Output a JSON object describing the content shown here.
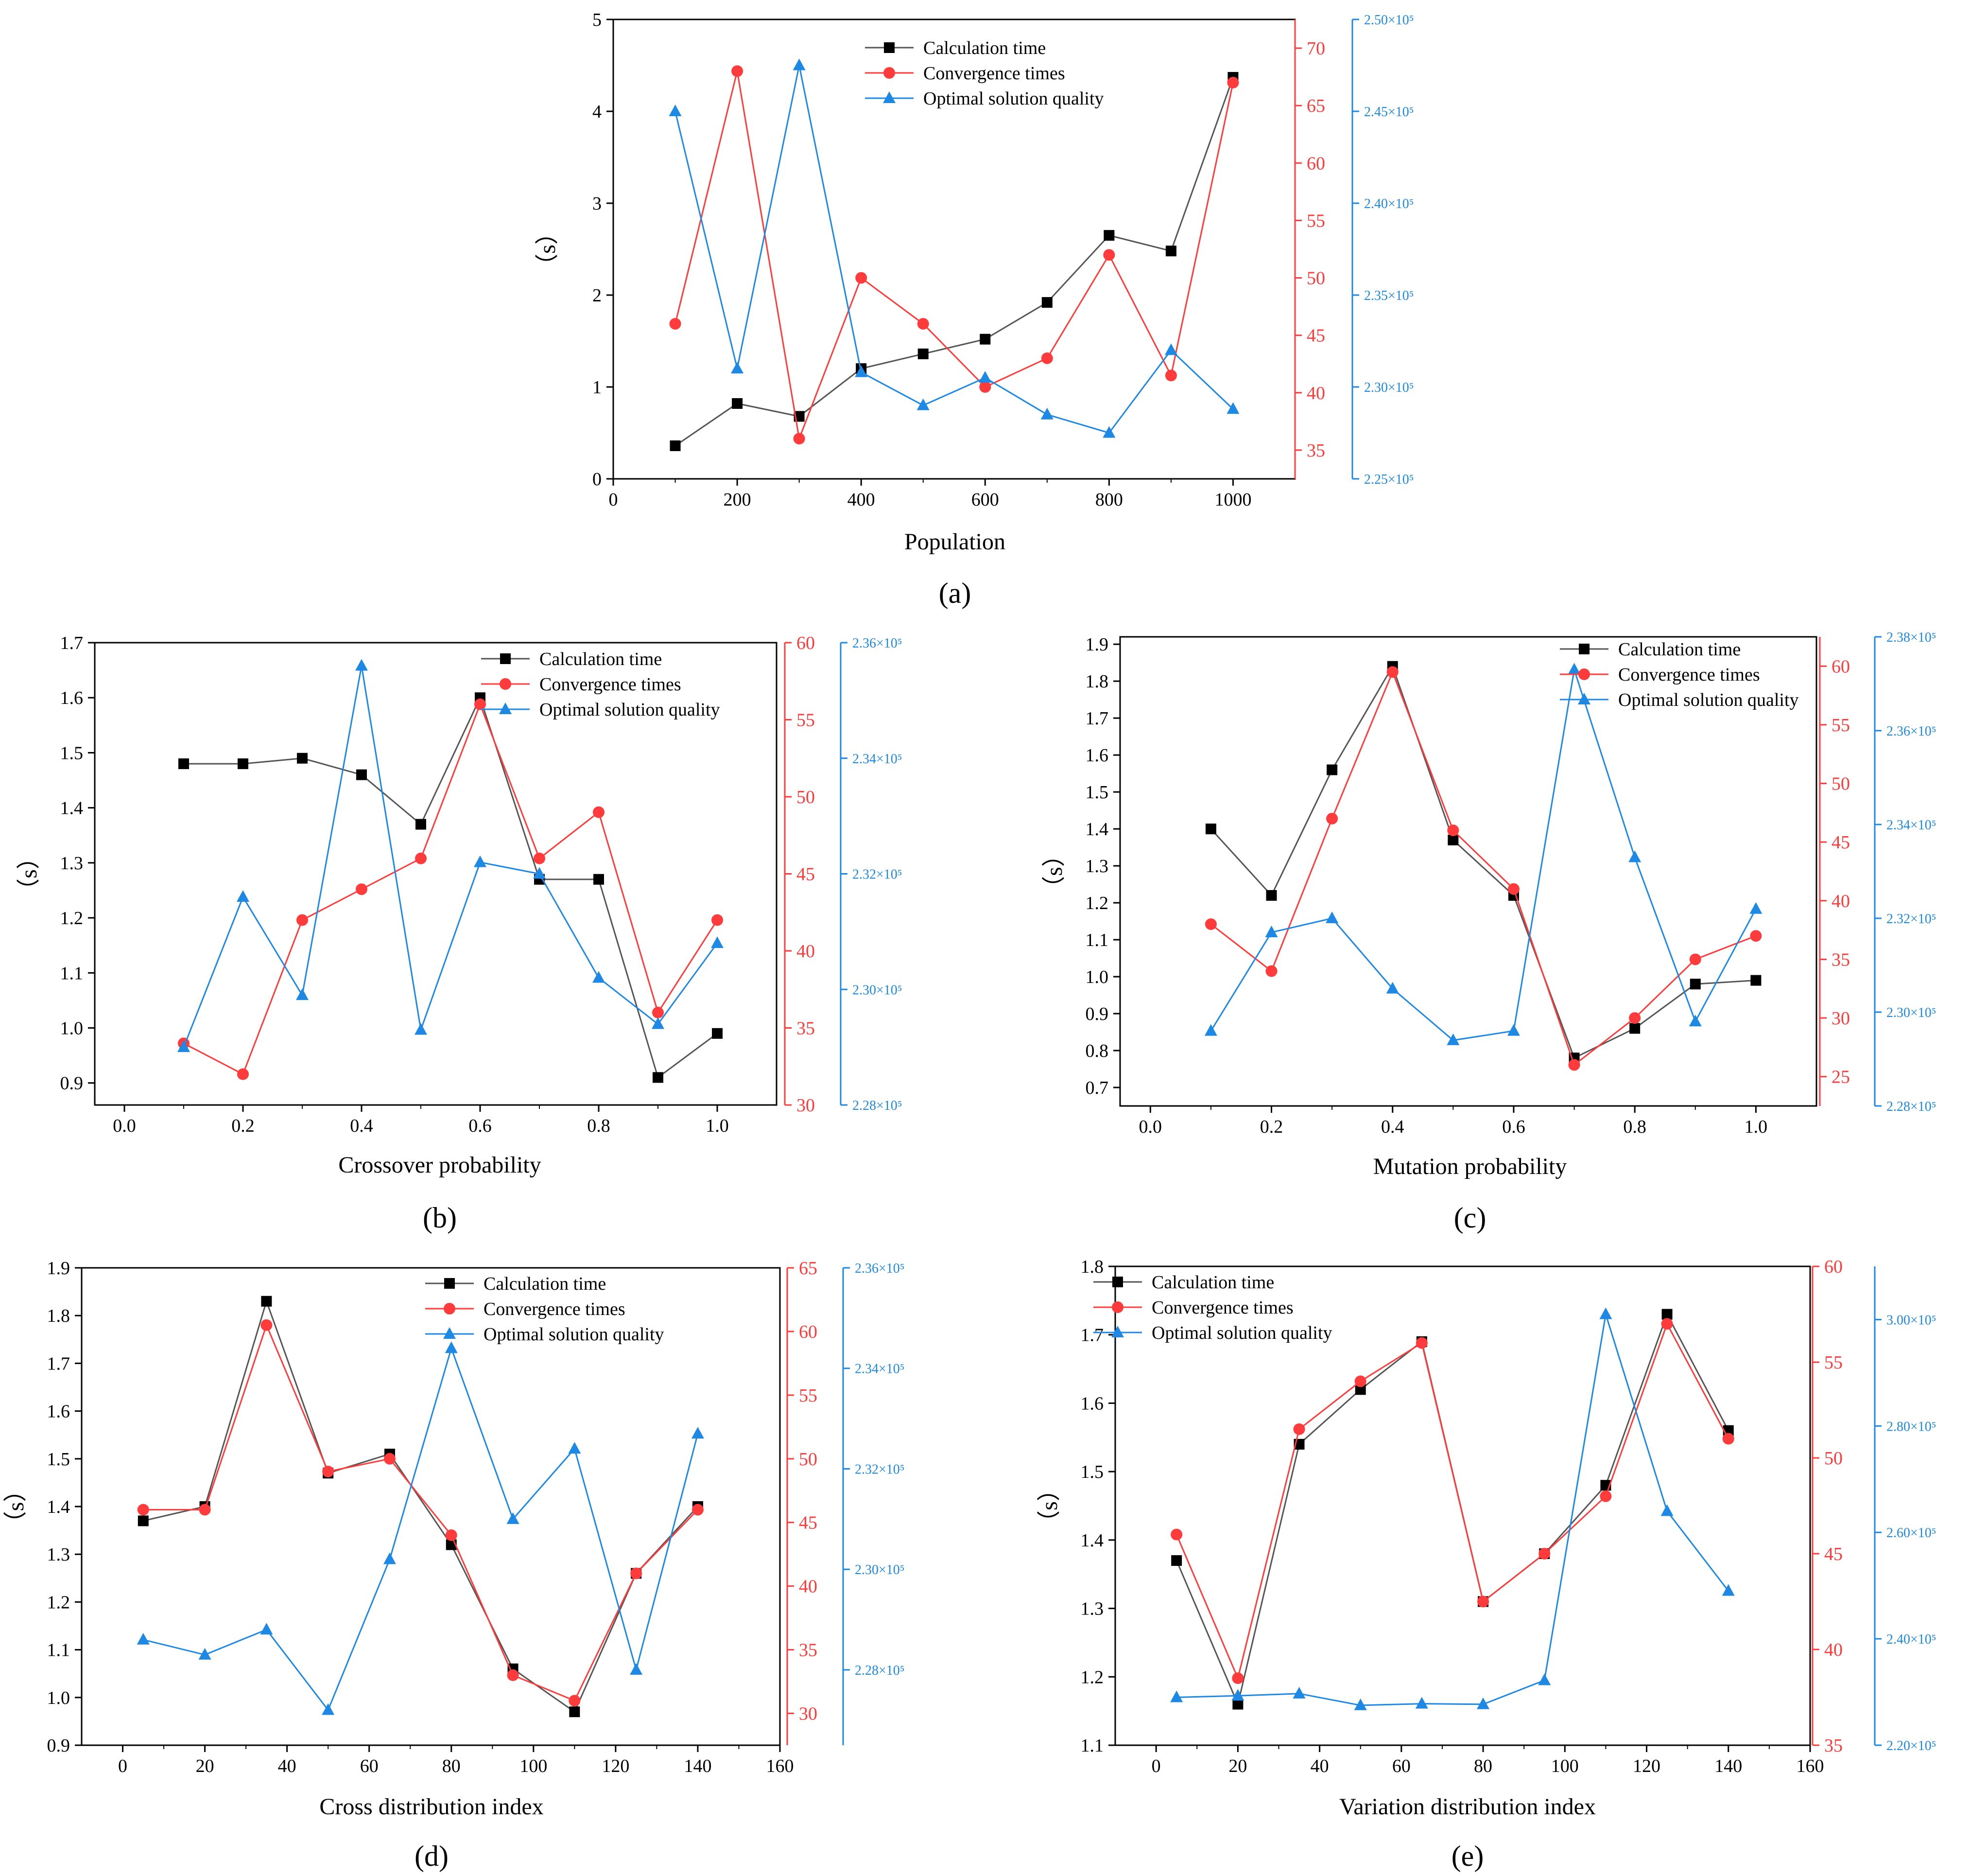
{
  "figure": {
    "colors": {
      "calc": "#000000",
      "calc_line": "#555555",
      "conv": "#ff3b3b",
      "opt": "#1e88e5"
    }
  },
  "chart_data": [
    {
      "id": "a",
      "type": "line",
      "panel_label": "(a)",
      "xlabel": "Population",
      "ylabel": "（s）",
      "xlim": [
        0,
        1100
      ],
      "xticks": [
        0,
        200,
        400,
        600,
        800,
        1000
      ],
      "xtick_labels": [
        "0",
        "200",
        "400",
        "600",
        "800",
        "1000"
      ],
      "y1": {
        "lim": [
          0,
          5
        ],
        "ticks": [
          0,
          1,
          2,
          3,
          4,
          5
        ],
        "labels": [
          "0",
          "1",
          "2",
          "3",
          "4",
          "5"
        ]
      },
      "y2": {
        "lim": [
          32.5,
          72.5
        ],
        "ticks": [
          35,
          40,
          45,
          50,
          55,
          60,
          65,
          70
        ],
        "labels": [
          "35",
          "40",
          "45",
          "50",
          "55",
          "60",
          "65",
          "70"
        ]
      },
      "y3": {
        "lim": [
          225000,
          250000
        ],
        "ticks": [
          225000,
          230000,
          235000,
          240000,
          245000,
          250000
        ],
        "labels": [
          "2.25×10⁵",
          "2.30×10⁵",
          "2.35×10⁵",
          "2.40×10⁵",
          "2.45×10⁵",
          "2.50×10⁵"
        ]
      },
      "x": [
        100,
        200,
        300,
        400,
        500,
        600,
        700,
        800,
        900,
        1000
      ],
      "legend": [
        "Calculation time",
        "Convergence times",
        "Optimal solution quality"
      ],
      "series": [
        {
          "name": "Calculation time",
          "axis": "y1",
          "values": [
            0.36,
            0.82,
            0.68,
            1.2,
            1.36,
            1.52,
            1.92,
            2.65,
            2.48,
            4.37
          ]
        },
        {
          "name": "Convergence times",
          "axis": "y2",
          "values": [
            46,
            68,
            36,
            50,
            46,
            40.5,
            43,
            52,
            41.5,
            67
          ]
        },
        {
          "name": "Optimal solution quality",
          "axis": "y3",
          "values": [
            245000,
            231000,
            247500,
            230800,
            229000,
            230500,
            228500,
            227500,
            232000,
            228800
          ]
        }
      ]
    },
    {
      "id": "b",
      "type": "line",
      "panel_label": "(b)",
      "xlabel": "Crossover probability",
      "ylabel": "（s）",
      "xlim": [
        -0.05,
        1.1
      ],
      "xticks": [
        0,
        0.2,
        0.4,
        0.6,
        0.8,
        1.0
      ],
      "xtick_labels": [
        "0.0",
        "0.2",
        "0.4",
        "0.6",
        "0.8",
        "1.0"
      ],
      "y1": {
        "lim": [
          0.86,
          1.7
        ],
        "ticks": [
          0.9,
          1.0,
          1.1,
          1.2,
          1.3,
          1.4,
          1.5,
          1.6,
          1.7
        ],
        "labels": [
          "0.9",
          "1.0",
          "1.1",
          "1.2",
          "1.3",
          "1.4",
          "1.5",
          "1.6",
          "1.7"
        ]
      },
      "y2": {
        "lim": [
          30,
          60
        ],
        "ticks": [
          30,
          35,
          40,
          45,
          50,
          55,
          60
        ],
        "labels": [
          "30",
          "35",
          "40",
          "45",
          "50",
          "55",
          "60"
        ]
      },
      "y3": {
        "lim": [
          228000,
          236000
        ],
        "ticks": [
          228000,
          230000,
          232000,
          234000,
          236000
        ],
        "labels": [
          "2.28×10⁵",
          "2.30×10⁵",
          "2.32×10⁵",
          "2.34×10⁵",
          "2.36×10⁵"
        ]
      },
      "x": [
        0.1,
        0.2,
        0.3,
        0.4,
        0.5,
        0.6,
        0.7,
        0.8,
        0.9,
        1.0
      ],
      "legend": [
        "Calculation time",
        "Convergence times",
        "Optimal solution quality"
      ],
      "series": [
        {
          "name": "Calculation time",
          "axis": "y1",
          "values": [
            1.48,
            1.48,
            1.49,
            1.46,
            1.37,
            1.6,
            1.27,
            1.27,
            0.91,
            0.99
          ]
        },
        {
          "name": "Convergence times",
          "axis": "y2",
          "values": [
            34,
            32,
            42,
            44,
            46,
            56,
            46,
            49,
            36,
            42
          ]
        },
        {
          "name": "Optimal solution quality",
          "axis": "y3",
          "values": [
            229000,
            231600,
            229900,
            235600,
            229300,
            232200,
            232000,
            230200,
            229400,
            230800
          ]
        }
      ]
    },
    {
      "id": "c",
      "type": "line",
      "panel_label": "(c)",
      "xlabel": "Mutation probability",
      "ylabel": "（s）",
      "xlim": [
        -0.05,
        1.1
      ],
      "xticks": [
        0,
        0.2,
        0.4,
        0.6,
        0.8,
        1.0
      ],
      "xtick_labels": [
        "0.0",
        "0.2",
        "0.4",
        "0.6",
        "0.8",
        "1.0"
      ],
      "y1": {
        "lim": [
          0.65,
          1.92
        ],
        "ticks": [
          0.7,
          0.8,
          0.9,
          1.0,
          1.1,
          1.2,
          1.3,
          1.4,
          1.5,
          1.6,
          1.7,
          1.8,
          1.9
        ],
        "labels": [
          "0.7",
          "0.8",
          "0.9",
          "1.0",
          "1.1",
          "1.2",
          "1.3",
          "1.4",
          "1.5",
          "1.6",
          "1.7",
          "1.8",
          "1.9"
        ]
      },
      "y2": {
        "lim": [
          22.5,
          62.5
        ],
        "ticks": [
          25,
          30,
          35,
          40,
          45,
          50,
          55,
          60
        ],
        "labels": [
          "25",
          "30",
          "35",
          "40",
          "45",
          "50",
          "55",
          "60"
        ]
      },
      "y3": {
        "lim": [
          228000,
          238000
        ],
        "ticks": [
          228000,
          230000,
          232000,
          234000,
          236000,
          238000
        ],
        "labels": [
          "2.28×10⁵",
          "2.30×10⁵",
          "2.32×10⁵",
          "2.34×10⁵",
          "2.36×10⁵",
          "2.38×10⁵"
        ]
      },
      "x": [
        0.1,
        0.2,
        0.3,
        0.4,
        0.5,
        0.6,
        0.7,
        0.8,
        0.9,
        1.0
      ],
      "legend": [
        "Calculation time",
        "Convergence times",
        "Optimal solution quality"
      ],
      "series": [
        {
          "name": "Calculation time",
          "axis": "y1",
          "values": [
            1.4,
            1.22,
            1.56,
            1.84,
            1.37,
            1.22,
            0.78,
            0.86,
            0.98,
            0.99
          ]
        },
        {
          "name": "Convergence times",
          "axis": "y2",
          "values": [
            38,
            34,
            47,
            59.5,
            46,
            41,
            26,
            30,
            35,
            37
          ]
        },
        {
          "name": "Optimal solution quality",
          "axis": "y3",
          "values": [
            229600,
            231700,
            232000,
            230500,
            229400,
            229600,
            237300,
            233300,
            229800,
            232200
          ]
        }
      ]
    },
    {
      "id": "d",
      "type": "line",
      "panel_label": "(d)",
      "xlabel": "Cross distribution index",
      "ylabel": "（s）",
      "xlim": [
        -10,
        160
      ],
      "xticks": [
        0,
        20,
        40,
        60,
        80,
        100,
        120,
        140,
        160
      ],
      "xtick_labels": [
        "0",
        "20",
        "40",
        "60",
        "80",
        "100",
        "120",
        "140",
        "160"
      ],
      "y1": {
        "lim": [
          0.9,
          1.9
        ],
        "ticks": [
          0.9,
          1.0,
          1.1,
          1.2,
          1.3,
          1.4,
          1.5,
          1.6,
          1.7,
          1.8,
          1.9
        ],
        "labels": [
          "0.9",
          "1.0",
          "1.1",
          "1.2",
          "1.3",
          "1.4",
          "1.5",
          "1.6",
          "1.7",
          "1.8",
          "1.9"
        ]
      },
      "y2": {
        "lim": [
          27.5,
          65
        ],
        "ticks": [
          30,
          35,
          40,
          45,
          50,
          55,
          60,
          65
        ],
        "labels": [
          "30",
          "35",
          "40",
          "45",
          "50",
          "55",
          "60",
          "65"
        ]
      },
      "y3": {
        "lim": [
          226500,
          236000
        ],
        "ticks": [
          228000,
          230000,
          232000,
          234000,
          236000
        ],
        "labels": [
          "2.28×10⁵",
          "2.30×10⁵",
          "2.32×10⁵",
          "2.34×10⁵",
          "2.36×10⁵"
        ]
      },
      "x": [
        5,
        20,
        35,
        50,
        65,
        80,
        95,
        110,
        125,
        140
      ],
      "legend": [
        "Calculation time",
        "Convergence times",
        "Optimal solution quality"
      ],
      "series": [
        {
          "name": "Calculation time",
          "axis": "y1",
          "values": [
            1.37,
            1.4,
            1.83,
            1.47,
            1.51,
            1.32,
            1.06,
            0.97,
            1.26,
            1.4
          ]
        },
        {
          "name": "Convergence times",
          "axis": "y2",
          "values": [
            46,
            46,
            60.5,
            49,
            50,
            44,
            33,
            31,
            41,
            46
          ]
        },
        {
          "name": "Optimal solution quality",
          "axis": "y3",
          "values": [
            228600,
            228300,
            228800,
            227200,
            230200,
            234400,
            231000,
            232400,
            228000,
            232700
          ]
        }
      ]
    },
    {
      "id": "e",
      "type": "line",
      "panel_label": "(e)",
      "xlabel": "Variation distribution index",
      "ylabel": "（s）",
      "xlim": [
        -10,
        160
      ],
      "xticks": [
        0,
        20,
        40,
        60,
        80,
        100,
        120,
        140,
        160
      ],
      "xtick_labels": [
        "0",
        "20",
        "40",
        "60",
        "80",
        "100",
        "120",
        "140",
        "160"
      ],
      "y1": {
        "lim": [
          1.1,
          1.8
        ],
        "ticks": [
          1.1,
          1.2,
          1.3,
          1.4,
          1.5,
          1.6,
          1.7,
          1.8
        ],
        "labels": [
          "1.1",
          "1.2",
          "1.3",
          "1.4",
          "1.5",
          "1.6",
          "1.7",
          "1.8"
        ]
      },
      "y2": {
        "lim": [
          35,
          60
        ],
        "ticks": [
          35,
          40,
          45,
          50,
          55,
          60
        ],
        "labels": [
          "35",
          "40",
          "45",
          "50",
          "55",
          "60"
        ]
      },
      "y3": {
        "lim": [
          220000,
          310000
        ],
        "ticks": [
          220000,
          240000,
          260000,
          280000,
          300000
        ],
        "labels": [
          "2.20×10⁵",
          "2.40×10⁵",
          "2.60×10⁵",
          "2.80×10⁵",
          "3.00×10⁵"
        ]
      },
      "x": [
        5,
        20,
        35,
        50,
        65,
        80,
        95,
        110,
        125,
        140
      ],
      "legend": [
        "Calculation time",
        "Convergence times",
        "Optimal solution quality"
      ],
      "series": [
        {
          "name": "Calculation time",
          "axis": "y1",
          "values": [
            1.37,
            1.16,
            1.54,
            1.62,
            1.69,
            1.31,
            1.38,
            1.48,
            1.73,
            1.56
          ]
        },
        {
          "name": "Convergence times",
          "axis": "y2",
          "values": [
            46,
            38.5,
            51.5,
            54,
            56,
            42.5,
            45,
            48,
            57,
            51
          ]
        },
        {
          "name": "Optimal solution quality",
          "axis": "y3",
          "values": [
            229000,
            229300,
            229700,
            227500,
            227800,
            227700,
            232200,
            301000,
            264000,
            249000
          ]
        }
      ]
    }
  ]
}
